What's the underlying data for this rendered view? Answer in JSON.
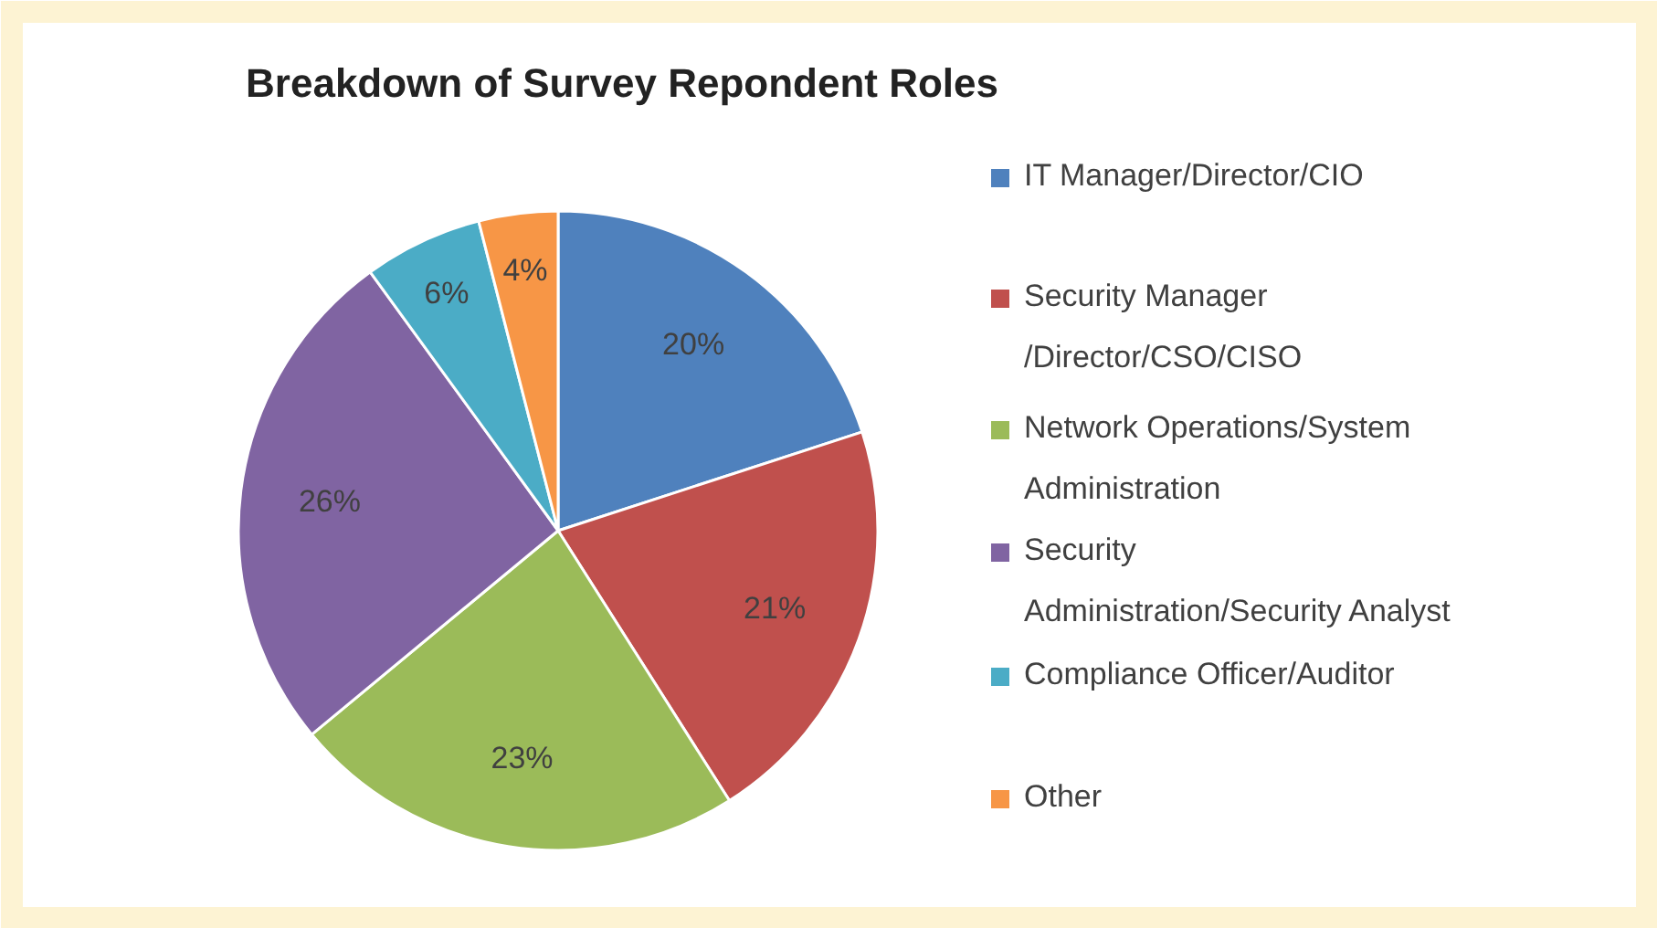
{
  "chart_data": {
    "type": "pie",
    "title": "Breakdown of Survey Repondent Roles",
    "categories": [
      "IT Manager/Director/CIO",
      "Security Manager\n/Director/CSO/CISO",
      "Network Operations/System\nAdministration",
      "Security\nAdministration/Security  Analyst",
      "Compliance Officer/Auditor",
      "Other"
    ],
    "values": [
      20,
      21,
      23,
      26,
      6,
      4
    ],
    "value_labels": [
      "20%",
      "21%",
      "23%",
      "26%",
      "6%",
      "4%"
    ],
    "colors": [
      "#4f81bd",
      "#c0504d",
      "#9bbb59",
      "#8064a2",
      "#4bacc6",
      "#f79646"
    ],
    "legend": "right"
  }
}
